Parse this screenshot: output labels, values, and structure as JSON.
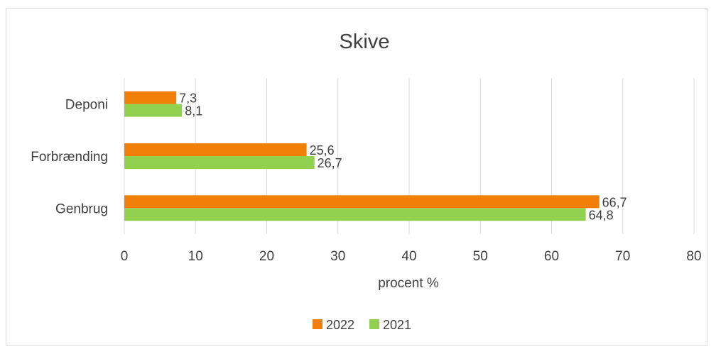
{
  "chart_data": {
    "type": "bar",
    "orientation": "horizontal",
    "title": "Skive",
    "xlabel": "procent %",
    "ylabel": "",
    "categories": [
      "Deponi",
      "Forbrænding",
      "Genbrug"
    ],
    "series": [
      {
        "name": "2022",
        "color": "#f07f09",
        "values": [
          7.3,
          25.6,
          66.7
        ],
        "labels": [
          "7,3",
          "25,6",
          "66,7"
        ]
      },
      {
        "name": "2021",
        "color": "#92d050",
        "values": [
          8.1,
          26.7,
          64.8
        ],
        "labels": [
          "8,1",
          "26,7",
          "64,8"
        ]
      }
    ],
    "xlim": [
      0,
      80
    ],
    "xticks": [
      0,
      10,
      20,
      30,
      40,
      50,
      60,
      70,
      80
    ],
    "grid": true,
    "legend_position": "bottom"
  }
}
